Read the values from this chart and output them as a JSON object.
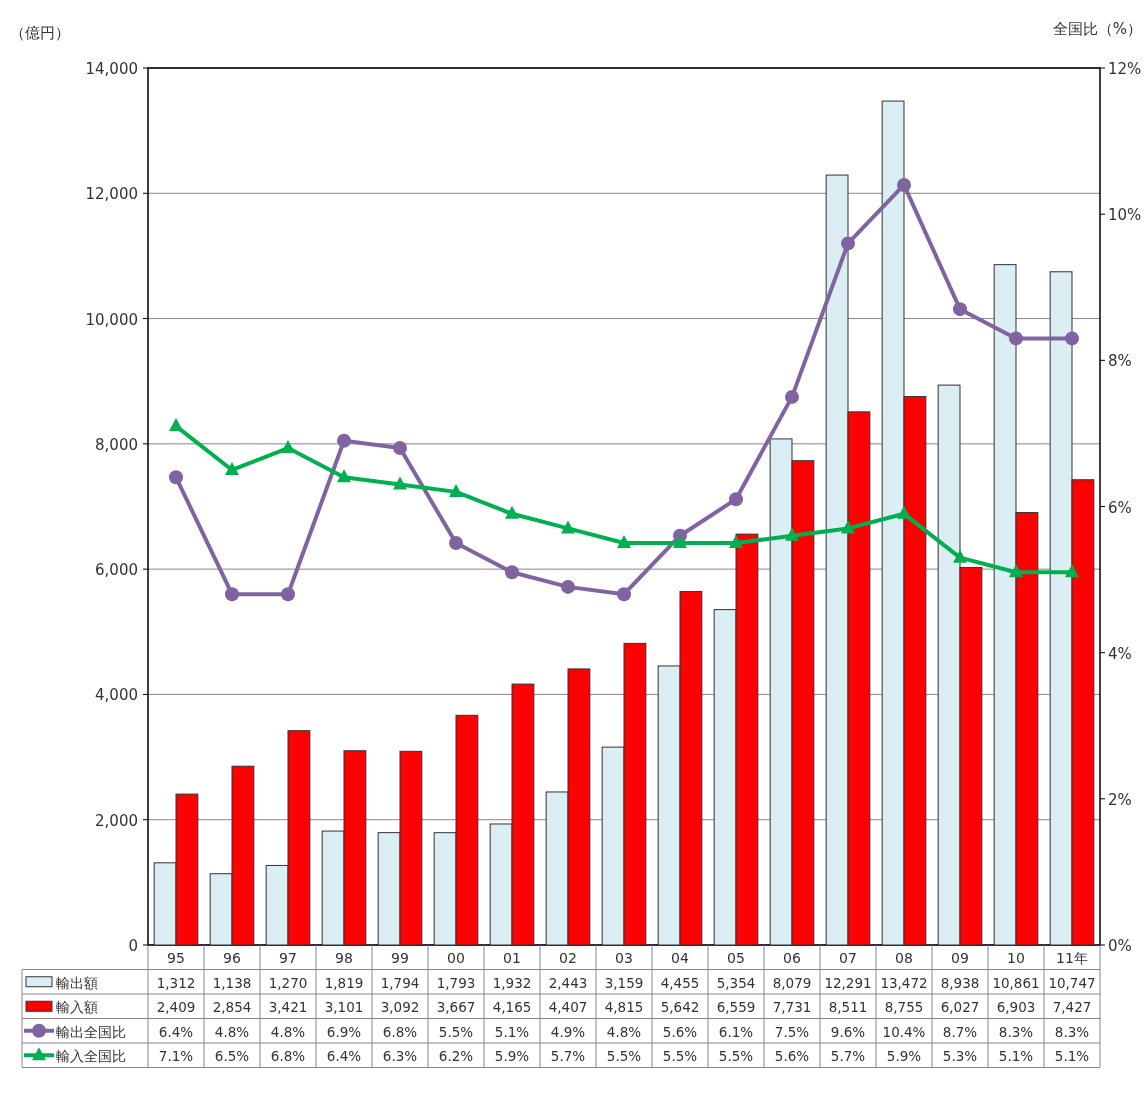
{
  "chart_data": {
    "type": "bar",
    "ylabel": "（億円）",
    "y2label": "全国比（%）",
    "categories": [
      "95",
      "96",
      "97",
      "98",
      "99",
      "00",
      "01",
      "02",
      "03",
      "04",
      "05",
      "06",
      "07",
      "08",
      "09",
      "10",
      "11年"
    ],
    "series": [
      {
        "name": "輸出額",
        "color": "#dbeef3",
        "values": [
          1312,
          1138,
          1270,
          1819,
          1794,
          1793,
          1932,
          2443,
          3159,
          4455,
          5354,
          8079,
          12291,
          13472,
          8938,
          10861,
          10747
        ],
        "value_labels": [
          "1,312",
          "1,138",
          "1,270",
          "1,819",
          "1,794",
          "1,793",
          "1,932",
          "2,443",
          "3,159",
          "4,455",
          "5,354",
          "8,079",
          "12,291",
          "13,472",
          "8,938",
          "10,861",
          "10,747"
        ]
      },
      {
        "name": "輸入額",
        "color": "#ff0000",
        "values": [
          2409,
          2854,
          3421,
          3101,
          3092,
          3667,
          4165,
          4407,
          4815,
          5642,
          6559,
          7731,
          8511,
          8755,
          6027,
          6903,
          7427
        ],
        "value_labels": [
          "2,409",
          "2,854",
          "3,421",
          "3,101",
          "3,092",
          "3,667",
          "4,165",
          "4,407",
          "4,815",
          "5,642",
          "6,559",
          "7,731",
          "8,511",
          "8,755",
          "6,027",
          "6,903",
          "7,427"
        ]
      },
      {
        "name": "輸出全国比",
        "type": "line",
        "axis": "y2",
        "color": "#8064a2",
        "marker": "circle",
        "values": [
          6.4,
          4.8,
          4.8,
          6.9,
          6.8,
          5.5,
          5.1,
          4.9,
          4.8,
          5.6,
          6.1,
          7.5,
          9.6,
          10.4,
          8.7,
          8.3,
          8.3
        ],
        "value_labels": [
          "6.4%",
          "4.8%",
          "4.8%",
          "6.9%",
          "6.8%",
          "5.5%",
          "5.1%",
          "4.9%",
          "4.8%",
          "5.6%",
          "6.1%",
          "7.5%",
          "9.6%",
          "10.4%",
          "8.7%",
          "8.3%",
          "8.3%"
        ]
      },
      {
        "name": "輸入全国比",
        "type": "line",
        "axis": "y2",
        "color": "#00b050",
        "marker": "triangle",
        "values": [
          7.1,
          6.5,
          6.8,
          6.4,
          6.3,
          6.2,
          5.9,
          5.7,
          5.5,
          5.5,
          5.5,
          5.6,
          5.7,
          5.9,
          5.3,
          5.1,
          5.1
        ],
        "value_labels": [
          "7.1%",
          "6.5%",
          "6.8%",
          "6.4%",
          "6.3%",
          "6.2%",
          "5.9%",
          "5.7%",
          "5.5%",
          "5.5%",
          "5.5%",
          "5.6%",
          "5.7%",
          "5.9%",
          "5.3%",
          "5.1%",
          "5.1%"
        ]
      }
    ],
    "ylim": [
      0,
      14000
    ],
    "yticks": [
      {
        "value": 0,
        "label": "0"
      },
      {
        "value": 2000,
        "label": "2,000"
      },
      {
        "value": 4000,
        "label": "4,000"
      },
      {
        "value": 6000,
        "label": "6,000"
      },
      {
        "value": 8000,
        "label": "8,000"
      },
      {
        "value": 10000,
        "label": "10,000"
      },
      {
        "value": 12000,
        "label": "12,000"
      },
      {
        "value": 14000,
        "label": "14,000"
      }
    ],
    "y2lim": [
      0,
      12
    ],
    "y2ticks": [
      {
        "value": 0,
        "label": "0%"
      },
      {
        "value": 2,
        "label": "2%"
      },
      {
        "value": 4,
        "label": "4%"
      },
      {
        "value": 6,
        "label": "6%"
      },
      {
        "value": 8,
        "label": "8%"
      },
      {
        "value": 10,
        "label": "10%"
      },
      {
        "value": 12,
        "label": "12%"
      }
    ],
    "grid": "y",
    "legend": "bottom"
  }
}
